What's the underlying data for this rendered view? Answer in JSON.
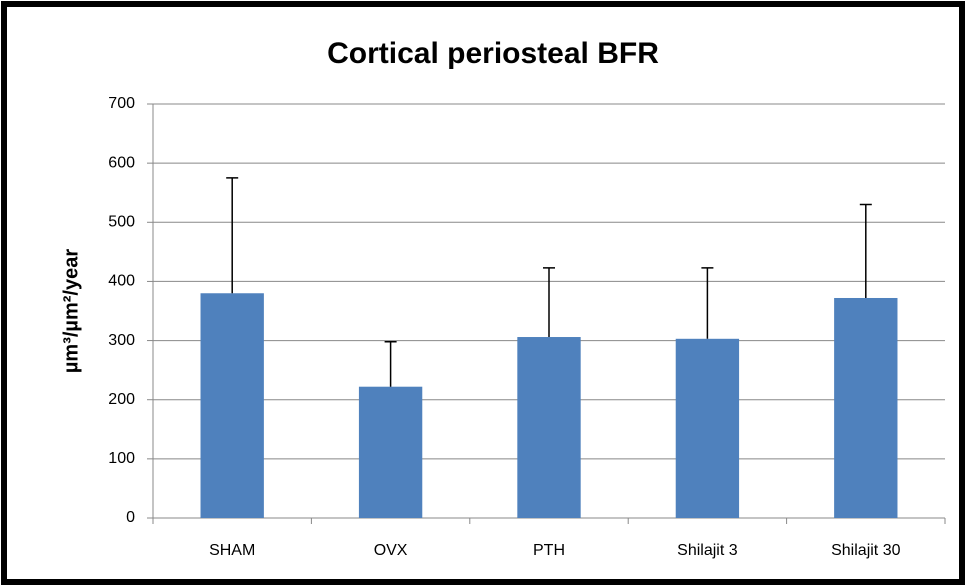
{
  "chart_data": {
    "type": "bar",
    "title": "Cortical periosteal BFR",
    "y_label": "µm³/µm²/year",
    "categories": [
      "SHAM",
      "OVX",
      "PTH",
      "Shilajit 3",
      "Shilajit 30"
    ],
    "values": [
      380,
      222,
      306,
      303,
      372
    ],
    "errors": [
      195,
      76,
      117,
      120,
      158
    ],
    "color": "#4f81bd",
    "ylim": [
      0,
      700
    ],
    "yticks": [
      0,
      100,
      200,
      300,
      400,
      500,
      600,
      700
    ],
    "grid": true
  }
}
